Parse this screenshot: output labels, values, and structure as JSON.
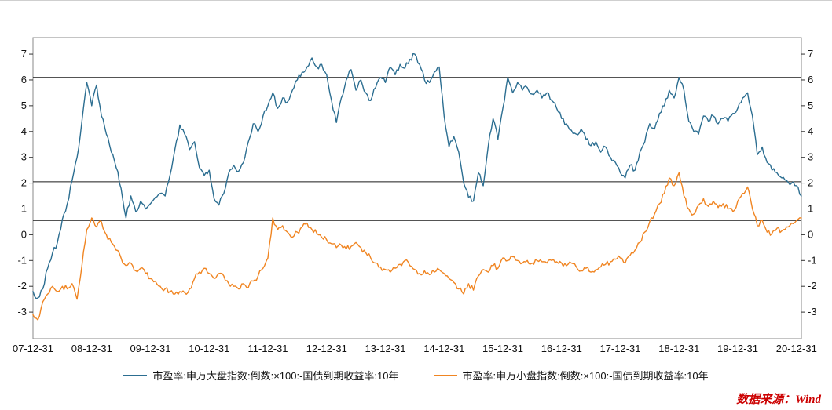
{
  "chart_data": {
    "type": "line",
    "title": "",
    "x_labels": [
      "07-12-31",
      "08-12-31",
      "09-12-31",
      "10-12-31",
      "11-12-31",
      "12-12-31",
      "13-12-31",
      "14-12-31",
      "15-12-31",
      "16-12-31",
      "17-12-31",
      "18-12-31",
      "19-12-31",
      "20-12-31"
    ],
    "x_granularity": "monthly, 2007-12 to 2021-01",
    "yticks": [
      7,
      6,
      5,
      4,
      3,
      2,
      1,
      0,
      -1,
      -2,
      -3
    ],
    "ylim": [
      -4.03,
      7.64
    ],
    "grid": "off",
    "reference_lines": [
      6.1,
      2.05,
      0.55
    ],
    "legend_position": "bottom-center",
    "series": [
      {
        "name": "市盈率:申万大盘指数:倒数:×100:-国债到期收益率:10年",
        "color": "#2c6e91",
        "values": [
          -2.2,
          -2.45,
          -2.1,
          -1.3,
          -0.7,
          -0.3,
          0.6,
          1.2,
          2.1,
          3.0,
          4.4,
          5.9,
          5.0,
          5.8,
          4.6,
          3.9,
          3.2,
          2.6,
          1.8,
          0.65,
          1.5,
          0.9,
          1.3,
          1.0,
          1.2,
          1.45,
          1.6,
          1.5,
          2.3,
          3.3,
          4.25,
          3.9,
          3.3,
          3.6,
          2.6,
          2.3,
          2.5,
          1.4,
          1.15,
          1.6,
          2.4,
          2.7,
          2.45,
          2.8,
          3.6,
          4.3,
          4.0,
          4.6,
          5.0,
          5.5,
          4.9,
          5.3,
          5.15,
          5.6,
          6.0,
          6.3,
          6.5,
          6.85,
          6.5,
          6.6,
          6.2,
          5.2,
          4.35,
          5.3,
          6.0,
          6.4,
          5.6,
          6.0,
          5.5,
          5.2,
          5.7,
          6.1,
          5.9,
          6.5,
          6.2,
          6.6,
          6.45,
          6.8,
          7.0,
          6.6,
          6.0,
          5.9,
          6.3,
          6.5,
          4.6,
          3.4,
          3.8,
          3.2,
          2.0,
          1.45,
          1.3,
          2.4,
          1.9,
          3.4,
          4.5,
          3.7,
          4.9,
          6.1,
          5.5,
          5.9,
          5.6,
          5.7,
          5.45,
          5.6,
          5.3,
          5.5,
          5.2,
          4.9,
          4.5,
          4.3,
          4.05,
          3.9,
          4.1,
          3.7,
          3.45,
          3.6,
          3.2,
          3.4,
          3.0,
          2.8,
          2.4,
          2.2,
          2.7,
          2.5,
          3.2,
          3.6,
          4.3,
          4.1,
          4.7,
          5.0,
          5.6,
          5.3,
          6.1,
          5.6,
          4.4,
          4.0,
          3.9,
          4.6,
          4.4,
          4.6,
          4.3,
          4.5,
          4.4,
          4.7,
          4.9,
          5.3,
          5.5,
          4.6,
          3.1,
          3.4,
          2.8,
          2.5,
          2.4,
          2.2,
          2.1,
          2.0,
          1.9,
          1.5
        ]
      },
      {
        "name": "市盈率:申万小盘指数:倒数:×100:-国债到期收益率:10年",
        "color": "#f08522",
        "values": [
          -3.1,
          -3.3,
          -2.6,
          -2.3,
          -2.0,
          -2.2,
          -2.0,
          -2.1,
          -1.9,
          -2.5,
          -1.2,
          0.2,
          0.65,
          0.3,
          0.5,
          0.0,
          -0.3,
          -0.6,
          -0.9,
          -1.2,
          -1.1,
          -1.4,
          -1.3,
          -1.5,
          -1.7,
          -1.8,
          -2.0,
          -2.1,
          -2.2,
          -2.3,
          -2.2,
          -2.25,
          -2.1,
          -1.7,
          -1.45,
          -1.3,
          -1.5,
          -1.7,
          -1.5,
          -1.6,
          -1.9,
          -2.0,
          -2.1,
          -1.9,
          -2.05,
          -1.8,
          -1.6,
          -1.3,
          -0.9,
          0.65,
          0.2,
          0.35,
          0.1,
          -0.1,
          0.1,
          0.3,
          0.45,
          0.2,
          0.05,
          -0.1,
          -0.2,
          -0.35,
          -0.5,
          -0.4,
          -0.55,
          -0.45,
          -0.3,
          -0.5,
          -0.7,
          -0.9,
          -1.1,
          -1.25,
          -1.35,
          -1.45,
          -1.3,
          -1.15,
          -1.0,
          -1.2,
          -1.35,
          -1.5,
          -1.4,
          -1.55,
          -1.45,
          -1.35,
          -1.5,
          -1.7,
          -1.85,
          -2.1,
          -2.3,
          -1.9,
          -2.15,
          -1.6,
          -1.35,
          -1.45,
          -1.2,
          -1.3,
          -0.9,
          -1.0,
          -0.85,
          -1.0,
          -1.1,
          -1.0,
          -1.1,
          -1.0,
          -1.05,
          -1.1,
          -1.0,
          -1.05,
          -1.1,
          -1.2,
          -1.1,
          -1.25,
          -1.4,
          -1.3,
          -1.45,
          -1.35,
          -1.25,
          -1.15,
          -1.05,
          -0.95,
          -0.9,
          -1.1,
          -0.8,
          -0.6,
          -0.3,
          0.1,
          0.5,
          0.8,
          1.2,
          1.6,
          2.2,
          1.9,
          2.4,
          1.5,
          1.0,
          0.8,
          1.15,
          1.4,
          1.1,
          1.3,
          1.05,
          1.2,
          1.0,
          0.9,
          1.3,
          1.6,
          1.85,
          1.0,
          0.35,
          0.55,
          0.1,
          0.05,
          0.25,
          0.15,
          0.3,
          0.45,
          0.55,
          0.65
        ]
      }
    ],
    "source_note": "数据来源：Wind"
  }
}
